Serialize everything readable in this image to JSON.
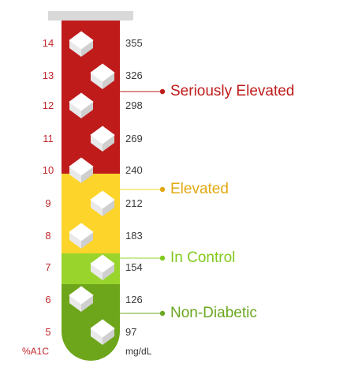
{
  "scale": {
    "a1c": [
      "14",
      "13",
      "12",
      "11",
      "10",
      "9",
      "8",
      "7",
      "6",
      "5"
    ],
    "mgdl": [
      "355",
      "326",
      "298",
      "269",
      "240",
      "212",
      "183",
      "154",
      "126",
      "97"
    ],
    "a1c_unit": "%A1C",
    "mgdl_unit": "mg/dL"
  },
  "zones": [
    {
      "label": "Seriously Elevated",
      "color": "#bf1b1b"
    },
    {
      "label": "Elevated",
      "color": "#e2a80f"
    },
    {
      "label": "In Control",
      "color": "#82c91e"
    },
    {
      "label": "Non-Diabetic",
      "color": "#6aa820"
    }
  ],
  "colors": {
    "tube_cap": "#d9d9d9",
    "a1c_text": "#c1272d",
    "mg_text": "#3a3a3a",
    "unit_text": "#333333",
    "red_band": "#bf1b1b",
    "yellow_band": "#fdd42a",
    "lightgreen_band": "#99d42d",
    "green_band": "#6ea61b"
  }
}
